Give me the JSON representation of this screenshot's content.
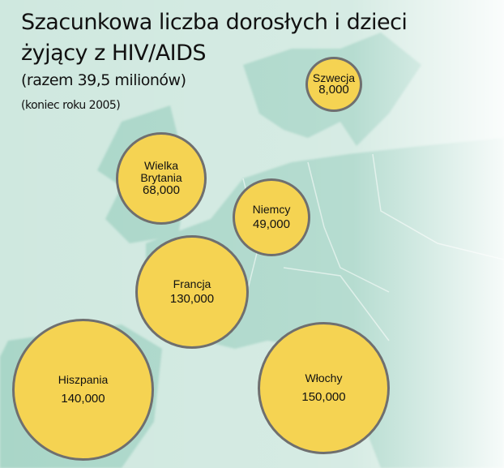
{
  "title": {
    "line1": "Szacunkowa liczba dorosłych i dzieci",
    "line2": "żyjący z HIV/AIDS",
    "total": "(razem 39,5 milionów)",
    "date": "(koniec roku 2005)"
  },
  "colors": {
    "bubble": "#f5d352",
    "bubble_border": "#6f6f6f",
    "land": "#a9d6c8",
    "sea": "#cfe8df"
  },
  "countries": [
    {
      "name": "Szwecja",
      "value": "8,000"
    },
    {
      "name": "Wielka Brytania",
      "value": "68,000"
    },
    {
      "name": "Niemcy",
      "value": "49,000"
    },
    {
      "name": "Francja",
      "value": "130,000"
    },
    {
      "name": "Hiszpania",
      "value": "140,000"
    },
    {
      "name": "Włochy",
      "value": "150,000"
    }
  ]
}
